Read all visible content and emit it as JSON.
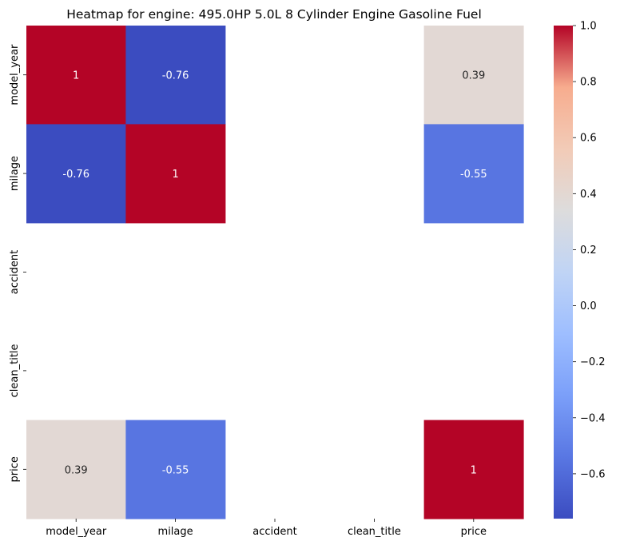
{
  "chart_data": {
    "type": "heatmap",
    "title": "Heatmap for engine: 495.0HP 5.0L 8 Cylinder Engine Gasoline Fuel",
    "xlabel": "",
    "ylabel": "",
    "x_categories": [
      "model_year",
      "milage",
      "accident",
      "clean_title",
      "price"
    ],
    "y_categories": [
      "model_year",
      "milage",
      "accident",
      "clean_title",
      "price"
    ],
    "values": [
      [
        1,
        -0.76,
        null,
        null,
        0.39
      ],
      [
        -0.76,
        1,
        null,
        null,
        -0.55
      ],
      [
        null,
        null,
        null,
        null,
        null
      ],
      [
        null,
        null,
        null,
        null,
        null
      ],
      [
        0.39,
        -0.55,
        null,
        null,
        1
      ]
    ],
    "annotations": [
      [
        "1",
        "-0.76",
        "",
        "",
        "0.39"
      ],
      [
        "-0.76",
        "1",
        "",
        "",
        "-0.55"
      ],
      [
        "",
        "",
        "",
        "",
        ""
      ],
      [
        "",
        "",
        "",
        "",
        ""
      ],
      [
        "0.39",
        "-0.55",
        "",
        "",
        "1"
      ]
    ],
    "colormap": "coolwarm",
    "vmin": -0.76,
    "vmax": 1.0,
    "colorbar_ticks": [
      1.0,
      0.8,
      0.6,
      0.4,
      0.2,
      0.0,
      -0.2,
      -0.4,
      -0.6
    ],
    "colorbar_tick_labels": [
      "1.0",
      "0.8",
      "0.6",
      "0.4",
      "0.2",
      "0.0",
      "−0.2",
      "−0.4",
      "−0.6"
    ],
    "grid": false,
    "legend": "colorbar-right"
  }
}
